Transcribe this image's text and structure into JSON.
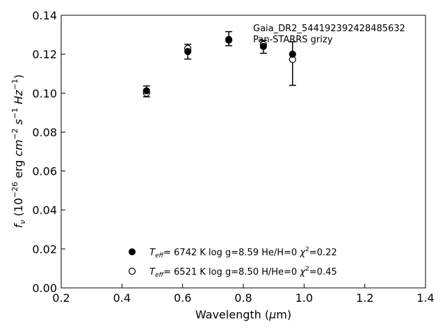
{
  "chart_data": {
    "type": "scatter",
    "xlabel": "Wavelength (μm)",
    "ylabel": "f_ν (10^-26 erg cm^-2 s^-1 Hz^-1)",
    "xlim": [
      0.2,
      1.4
    ],
    "ylim": [
      0.0,
      0.14
    ],
    "x_ticks": [
      0.2,
      0.4,
      0.6,
      0.8,
      1.0,
      1.2,
      1.4
    ],
    "y_ticks": [
      0.0,
      0.02,
      0.04,
      0.06,
      0.08,
      0.1,
      0.12,
      0.14
    ],
    "x_tick_labels": [
      "0.2",
      "0.4",
      "0.6",
      "0.8",
      "1.0",
      "1.2",
      "1.4"
    ],
    "y_tick_labels": [
      "0.00",
      "0.02",
      "0.04",
      "0.06",
      "0.08",
      "0.10",
      "0.12",
      "0.14"
    ],
    "grid": false,
    "annotations": [
      "Gaia_DR2_544192392428485632",
      "Pan-STARRS grizy"
    ],
    "observed": {
      "x": [
        0.481,
        0.617,
        0.752,
        0.866,
        0.962
      ],
      "y": [
        0.1009,
        0.1213,
        0.128,
        0.1238,
        0.1152
      ],
      "yerr": [
        0.0028,
        0.0038,
        0.0036,
        0.0033,
        0.0112
      ]
    },
    "series": [
      {
        "marker": "filled-circle",
        "legend": {
          "teff": "6742 K",
          "logg": "log g=8.59",
          "atm": "He/H=0",
          "chi2": "=0.22"
        },
        "x": [
          0.481,
          0.617,
          0.752,
          0.866,
          0.962
        ],
        "y": [
          0.1012,
          0.1214,
          0.1272,
          0.124,
          0.12
        ]
      },
      {
        "marker": "open-circle",
        "legend": {
          "teff": "6521 K",
          "logg": "log g=8.50",
          "atm": "H/He=0",
          "chi2": "=0.45"
        },
        "x": [
          0.481,
          0.617,
          0.752,
          0.866,
          0.962
        ],
        "y": [
          0.1,
          0.123,
          0.1276,
          0.125,
          0.1173
        ]
      }
    ],
    "legend_placement": "bottom-center"
  }
}
